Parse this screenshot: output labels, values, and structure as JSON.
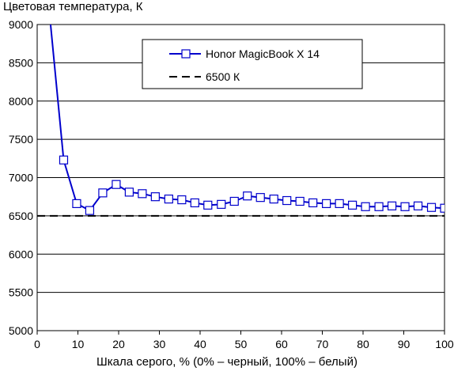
{
  "chart_data": {
    "type": "line",
    "title": "Цветовая температура, К",
    "xlabel": "Шкала серого, % (0% – черный, 100% – белый)",
    "ylabel": "",
    "xlim": [
      0,
      100
    ],
    "ylim": [
      5000,
      9000
    ],
    "xticks": [
      0,
      10,
      20,
      30,
      40,
      50,
      60,
      70,
      80,
      90,
      100
    ],
    "yticks": [
      5000,
      5500,
      6000,
      6500,
      7000,
      7500,
      8000,
      8500,
      9000
    ],
    "grid": "horizontal",
    "legend_position": "top-right",
    "series": [
      {
        "name": "Honor MagicBook X 14",
        "color": "#0000cc",
        "marker": "square",
        "x": [
          3.2,
          6.5,
          9.7,
          12.9,
          16.1,
          19.4,
          22.6,
          25.8,
          29.0,
          32.3,
          35.5,
          38.7,
          41.9,
          45.2,
          48.4,
          51.6,
          54.8,
          58.1,
          61.3,
          64.5,
          67.7,
          71.0,
          74.2,
          77.4,
          80.6,
          83.9,
          87.1,
          90.3,
          93.5,
          96.8,
          100
        ],
        "y": [
          9050,
          7230,
          6660,
          6570,
          6800,
          6910,
          6810,
          6790,
          6750,
          6720,
          6710,
          6670,
          6640,
          6650,
          6690,
          6760,
          6740,
          6720,
          6700,
          6690,
          6670,
          6660,
          6660,
          6640,
          6620,
          6620,
          6630,
          6620,
          6630,
          6610,
          6600
        ]
      },
      {
        "name": "6500 К",
        "color": "#000000",
        "style": "dashed",
        "x": [
          0,
          100
        ],
        "y": [
          6500,
          6500
        ]
      }
    ]
  }
}
